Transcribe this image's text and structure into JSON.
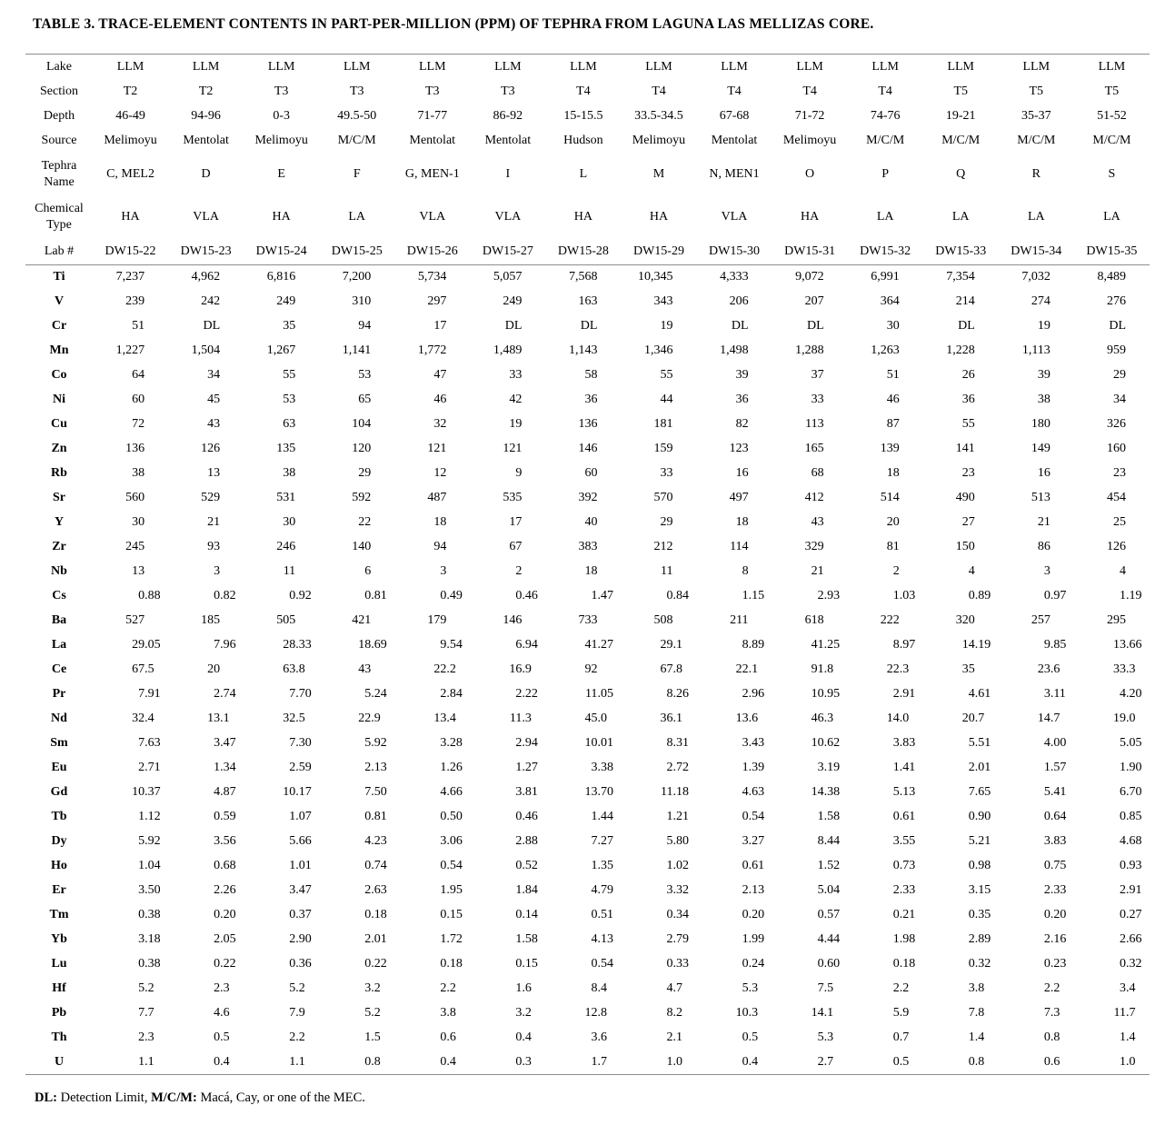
{
  "title": "TABLE 3. TRACE-ELEMENT CONTENTS IN PART-PER-MILLION (PPM) OF TEPHRA FROM LAGUNA LAS MELLIZAS CORE.",
  "header": {
    "row_labels": [
      "Lake",
      "Section",
      "Depth",
      "Source",
      "Tephra Name",
      "Chemical Type",
      "Lab #"
    ],
    "fields": [
      "lake",
      "section",
      "depth",
      "source",
      "tephra_name",
      "chemical_type",
      "lab"
    ]
  },
  "columns": [
    {
      "lake": "LLM",
      "section": "T2",
      "depth": "46-49",
      "source": "Melimoyu",
      "tephra_name": "C, MEL2",
      "chemical_type": "HA",
      "lab": "DW15-22"
    },
    {
      "lake": "LLM",
      "section": "T2",
      "depth": "94-96",
      "source": "Mentolat",
      "tephra_name": "D",
      "chemical_type": "VLA",
      "lab": "DW15-23"
    },
    {
      "lake": "LLM",
      "section": "T3",
      "depth": "0-3",
      "source": "Melimoyu",
      "tephra_name": "E",
      "chemical_type": "HA",
      "lab": "DW15-24"
    },
    {
      "lake": "LLM",
      "section": "T3",
      "depth": "49.5-50",
      "source": "M/C/M",
      "tephra_name": "F",
      "chemical_type": "LA",
      "lab": "DW15-25"
    },
    {
      "lake": "LLM",
      "section": "T3",
      "depth": "71-77",
      "source": "Mentolat",
      "tephra_name": "G, MEN-1",
      "chemical_type": "VLA",
      "lab": "DW15-26"
    },
    {
      "lake": "LLM",
      "section": "T3",
      "depth": "86-92",
      "source": "Mentolat",
      "tephra_name": "I",
      "chemical_type": "VLA",
      "lab": "DW15-27"
    },
    {
      "lake": "LLM",
      "section": "T4",
      "depth": "15-15.5",
      "source": "Hudson",
      "tephra_name": "L",
      "chemical_type": "HA",
      "lab": "DW15-28"
    },
    {
      "lake": "LLM",
      "section": "T4",
      "depth": "33.5-34.5",
      "source": "Melimoyu",
      "tephra_name": "M",
      "chemical_type": "HA",
      "lab": "DW15-29"
    },
    {
      "lake": "LLM",
      "section": "T4",
      "depth": "67-68",
      "source": "Mentolat",
      "tephra_name": "N, MEN1",
      "chemical_type": "VLA",
      "lab": "DW15-30"
    },
    {
      "lake": "LLM",
      "section": "T4",
      "depth": "71-72",
      "source": "Melimoyu",
      "tephra_name": "O",
      "chemical_type": "HA",
      "lab": "DW15-31"
    },
    {
      "lake": "LLM",
      "section": "T4",
      "depth": "74-76",
      "source": "M/C/M",
      "tephra_name": "P",
      "chemical_type": "LA",
      "lab": "DW15-32"
    },
    {
      "lake": "LLM",
      "section": "T5",
      "depth": "19-21",
      "source": "M/C/M",
      "tephra_name": "Q",
      "chemical_type": "LA",
      "lab": "DW15-33"
    },
    {
      "lake": "LLM",
      "section": "T5",
      "depth": "35-37",
      "source": "M/C/M",
      "tephra_name": "R",
      "chemical_type": "LA",
      "lab": "DW15-34"
    },
    {
      "lake": "LLM",
      "section": "T5",
      "depth": "51-52",
      "source": "M/C/M",
      "tephra_name": "S",
      "chemical_type": "LA",
      "lab": "DW15-35"
    }
  ],
  "body_rows": [
    {
      "element": "Ti",
      "values": [
        "7,237",
        "4,962",
        "6,816",
        "7,200",
        "5,734",
        "5,057",
        "7,568",
        "10,345",
        "4,333",
        "9,072",
        "6,991",
        "7,354",
        "7,032",
        "8,489"
      ]
    },
    {
      "element": "V",
      "values": [
        "239",
        "242",
        "249",
        "310",
        "297",
        "249",
        "163",
        "343",
        "206",
        "207",
        "364",
        "214",
        "274",
        "276"
      ]
    },
    {
      "element": "Cr",
      "values": [
        "51",
        "DL",
        "35",
        "94",
        "17",
        "DL",
        "DL",
        "19",
        "DL",
        "DL",
        "30",
        "DL",
        "19",
        "DL"
      ]
    },
    {
      "element": "Mn",
      "values": [
        "1,227",
        "1,504",
        "1,267",
        "1,141",
        "1,772",
        "1,489",
        "1,143",
        "1,346",
        "1,498",
        "1,288",
        "1,263",
        "1,228",
        "1,113",
        "959"
      ]
    },
    {
      "element": "Co",
      "values": [
        "64",
        "34",
        "55",
        "53",
        "47",
        "33",
        "58",
        "55",
        "39",
        "37",
        "51",
        "26",
        "39",
        "29"
      ]
    },
    {
      "element": "Ni",
      "values": [
        "60",
        "45",
        "53",
        "65",
        "46",
        "42",
        "36",
        "44",
        "36",
        "33",
        "46",
        "36",
        "38",
        "34"
      ]
    },
    {
      "element": "Cu",
      "values": [
        "72",
        "43",
        "63",
        "104",
        "32",
        "19",
        "136",
        "181",
        "82",
        "113",
        "87",
        "55",
        "180",
        "326"
      ]
    },
    {
      "element": "Zn",
      "values": [
        "136",
        "126",
        "135",
        "120",
        "121",
        "121",
        "146",
        "159",
        "123",
        "165",
        "139",
        "141",
        "149",
        "160"
      ]
    },
    {
      "element": "Rb",
      "values": [
        "38",
        "13",
        "38",
        "29",
        "12",
        "9",
        "60",
        "33",
        "16",
        "68",
        "18",
        "23",
        "16",
        "23"
      ]
    },
    {
      "element": "Sr",
      "values": [
        "560",
        "529",
        "531",
        "592",
        "487",
        "535",
        "392",
        "570",
        "497",
        "412",
        "514",
        "490",
        "513",
        "454"
      ]
    },
    {
      "element": "Y",
      "values": [
        "30",
        "21",
        "30",
        "22",
        "18",
        "17",
        "40",
        "29",
        "18",
        "43",
        "20",
        "27",
        "21",
        "25"
      ]
    },
    {
      "element": "Zr",
      "values": [
        "245",
        "93",
        "246",
        "140",
        "94",
        "67",
        "383",
        "212",
        "114",
        "329",
        "81",
        "150",
        "86",
        "126"
      ]
    },
    {
      "element": "Nb",
      "values": [
        "13",
        "3",
        "11",
        "6",
        "3",
        "2",
        "18",
        "11",
        "8",
        "21",
        "2",
        "4",
        "3",
        "4"
      ]
    },
    {
      "element": "Cs",
      "values": [
        "0.88",
        "0.82",
        "0.92",
        "0.81",
        "0.49",
        "0.46",
        "1.47",
        "0.84",
        "1.15",
        "2.93",
        "1.03",
        "0.89",
        "0.97",
        "1.19"
      ]
    },
    {
      "element": "Ba",
      "values": [
        "527",
        "185",
        "505",
        "421",
        "179",
        "146",
        "733",
        "508",
        "211",
        "618",
        "222",
        "320",
        "257",
        "295"
      ]
    },
    {
      "element": "La",
      "values": [
        "29.05",
        "7.96",
        "28.33",
        "18.69",
        "9.54",
        "6.94",
        "41.27",
        "29.1",
        "8.89",
        "41.25",
        "8.97",
        "14.19",
        "9.85",
        "13.66"
      ]
    },
    {
      "element": "Ce",
      "values": [
        "67.5",
        "20",
        "63.8",
        "43",
        "22.2",
        "16.9",
        "92",
        "67.8",
        "22.1",
        "91.8",
        "22.3",
        "35",
        "23.6",
        "33.3"
      ]
    },
    {
      "element": "Pr",
      "values": [
        "7.91",
        "2.74",
        "7.70",
        "5.24",
        "2.84",
        "2.22",
        "11.05",
        "8.26",
        "2.96",
        "10.95",
        "2.91",
        "4.61",
        "3.11",
        "4.20"
      ]
    },
    {
      "element": "Nd",
      "values": [
        "32.4",
        "13.1",
        "32.5",
        "22.9",
        "13.4",
        "11.3",
        "45.0",
        "36.1",
        "13.6",
        "46.3",
        "14.0",
        "20.7",
        "14.7",
        "19.0"
      ]
    },
    {
      "element": "Sm",
      "values": [
        "7.63",
        "3.47",
        "7.30",
        "5.92",
        "3.28",
        "2.94",
        "10.01",
        "8.31",
        "3.43",
        "10.62",
        "3.83",
        "5.51",
        "4.00",
        "5.05"
      ]
    },
    {
      "element": "Eu",
      "values": [
        "2.71",
        "1.34",
        "2.59",
        "2.13",
        "1.26",
        "1.27",
        "3.38",
        "2.72",
        "1.39",
        "3.19",
        "1.41",
        "2.01",
        "1.57",
        "1.90"
      ]
    },
    {
      "element": "Gd",
      "values": [
        "10.37",
        "4.87",
        "10.17",
        "7.50",
        "4.66",
        "3.81",
        "13.70",
        "11.18",
        "4.63",
        "14.38",
        "5.13",
        "7.65",
        "5.41",
        "6.70"
      ]
    },
    {
      "element": "Tb",
      "values": [
        "1.12",
        "0.59",
        "1.07",
        "0.81",
        "0.50",
        "0.46",
        "1.44",
        "1.21",
        "0.54",
        "1.58",
        "0.61",
        "0.90",
        "0.64",
        "0.85"
      ]
    },
    {
      "element": "Dy",
      "values": [
        "5.92",
        "3.56",
        "5.66",
        "4.23",
        "3.06",
        "2.88",
        "7.27",
        "5.80",
        "3.27",
        "8.44",
        "3.55",
        "5.21",
        "3.83",
        "4.68"
      ]
    },
    {
      "element": "Ho",
      "values": [
        "1.04",
        "0.68",
        "1.01",
        "0.74",
        "0.54",
        "0.52",
        "1.35",
        "1.02",
        "0.61",
        "1.52",
        "0.73",
        "0.98",
        "0.75",
        "0.93"
      ]
    },
    {
      "element": "Er",
      "values": [
        "3.50",
        "2.26",
        "3.47",
        "2.63",
        "1.95",
        "1.84",
        "4.79",
        "3.32",
        "2.13",
        "5.04",
        "2.33",
        "3.15",
        "2.33",
        "2.91"
      ]
    },
    {
      "element": "Tm",
      "values": [
        "0.38",
        "0.20",
        "0.37",
        "0.18",
        "0.15",
        "0.14",
        "0.51",
        "0.34",
        "0.20",
        "0.57",
        "0.21",
        "0.35",
        "0.20",
        "0.27"
      ]
    },
    {
      "element": "Yb",
      "values": [
        "3.18",
        "2.05",
        "2.90",
        "2.01",
        "1.72",
        "1.58",
        "4.13",
        "2.79",
        "1.99",
        "4.44",
        "1.98",
        "2.89",
        "2.16",
        "2.66"
      ]
    },
    {
      "element": "Lu",
      "values": [
        "0.38",
        "0.22",
        "0.36",
        "0.22",
        "0.18",
        "0.15",
        "0.54",
        "0.33",
        "0.24",
        "0.60",
        "0.18",
        "0.32",
        "0.23",
        "0.32"
      ]
    },
    {
      "element": "Hf",
      "values": [
        "5.2",
        "2.3",
        "5.2",
        "3.2",
        "2.2",
        "1.6",
        "8.4",
        "4.7",
        "5.3",
        "7.5",
        "2.2",
        "3.8",
        "2.2",
        "3.4"
      ]
    },
    {
      "element": "Pb",
      "values": [
        "7.7",
        "4.6",
        "7.9",
        "5.2",
        "3.8",
        "3.2",
        "12.8",
        "8.2",
        "10.3",
        "14.1",
        "5.9",
        "7.8",
        "7.3",
        "11.7"
      ]
    },
    {
      "element": "Th",
      "values": [
        "2.3",
        "0.5",
        "2.2",
        "1.5",
        "0.6",
        "0.4",
        "3.6",
        "2.1",
        "0.5",
        "5.3",
        "0.7",
        "1.4",
        "0.8",
        "1.4"
      ]
    },
    {
      "element": "U",
      "values": [
        "1.1",
        "0.4",
        "1.1",
        "0.8",
        "0.4",
        "0.3",
        "1.7",
        "1.0",
        "0.4",
        "2.7",
        "0.5",
        "0.8",
        "0.6",
        "1.0"
      ]
    }
  ],
  "footnote": {
    "dl_label": "DL:",
    "dl_text": " Detection Limit, ",
    "mcm_label": "M/C/M:",
    "mcm_text": " Macá, Cay, or one of the MEC."
  }
}
